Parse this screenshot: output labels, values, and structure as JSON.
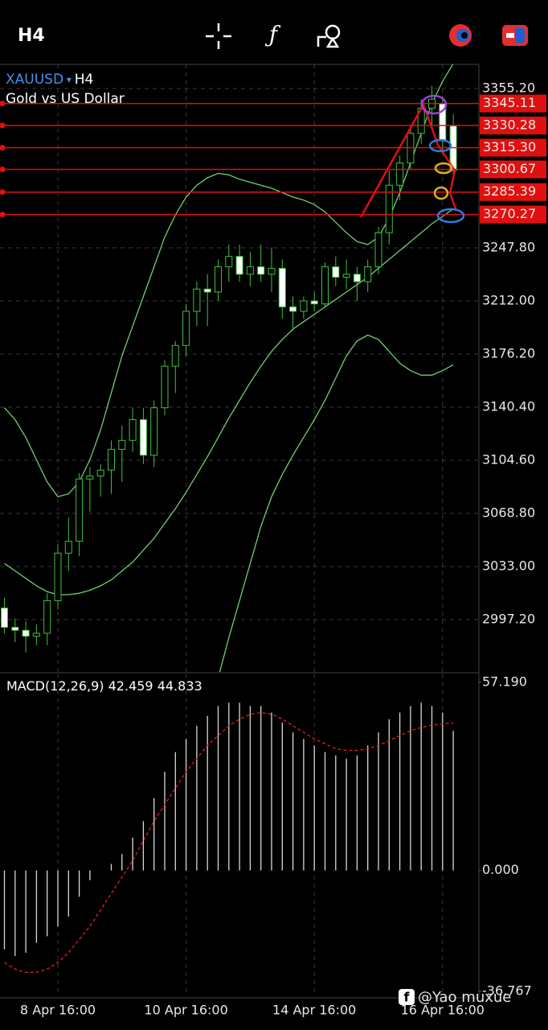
{
  "toolbar": {
    "timeframe": "H4"
  },
  "chart_data": [
    {
      "type": "candlestick",
      "symbol": "XAUUSD",
      "timeframe": "H4",
      "description": "Gold vs US Dollar",
      "categories": [
        null,
        null,
        null,
        null,
        null,
        "8 Apr 16:00",
        null,
        null,
        null,
        null,
        null,
        null,
        null,
        null,
        null,
        null,
        null,
        "10 Apr 16:00",
        null,
        null,
        null,
        null,
        null,
        null,
        null,
        null,
        null,
        null,
        null,
        "14 Apr 16:00",
        null,
        null,
        null,
        null,
        null,
        null,
        null,
        null,
        null,
        null,
        null,
        "16 Apr 16:00",
        null
      ],
      "open": [
        3005,
        2992,
        2990,
        2986,
        2988,
        3010,
        3042,
        3050,
        3092,
        3094,
        3098,
        3112,
        3118,
        3132,
        3108,
        3140,
        3168,
        3182,
        3205,
        3220,
        3218,
        3235,
        3242,
        3230,
        3235,
        3230,
        3234,
        3208,
        3205,
        3212,
        3210,
        3235,
        3228,
        3230,
        3225,
        3235,
        3258,
        3290,
        3305,
        3325,
        3342,
        3345,
        3330
      ],
      "high": [
        3012,
        2998,
        2996,
        2994,
        3015,
        3048,
        3066,
        3096,
        3100,
        3102,
        3118,
        3128,
        3140,
        3140,
        3145,
        3172,
        3185,
        3210,
        3225,
        3230,
        3240,
        3250,
        3250,
        3245,
        3250,
        3248,
        3240,
        3215,
        3215,
        3218,
        3238,
        3242,
        3240,
        3235,
        3240,
        3262,
        3300,
        3310,
        3330,
        3348,
        3357,
        3350,
        3338
      ],
      "low": [
        2988,
        2982,
        2975,
        2980,
        2980,
        3004,
        3030,
        3040,
        3070,
        3080,
        3082,
        3090,
        3110,
        3102,
        3100,
        3135,
        3150,
        3175,
        3195,
        3195,
        3212,
        3225,
        3225,
        3222,
        3225,
        3218,
        3200,
        3192,
        3200,
        3205,
        3208,
        3222,
        3220,
        3212,
        3218,
        3230,
        3250,
        3280,
        3300,
        3318,
        3330,
        3312,
        3296
      ],
      "close": [
        2992,
        2990,
        2986,
        2988,
        3010,
        3042,
        3050,
        3092,
        3094,
        3098,
        3112,
        3118,
        3132,
        3108,
        3140,
        3168,
        3182,
        3205,
        3220,
        3218,
        3235,
        3242,
        3230,
        3235,
        3230,
        3234,
        3208,
        3205,
        3212,
        3210,
        3235,
        3228,
        3230,
        3225,
        3235,
        3258,
        3290,
        3305,
        3325,
        3342,
        3348,
        3320,
        3300
      ],
      "up_color": "#3fbf3f",
      "down_color": "#ffffff",
      "overlays": [
        {
          "color": "#6fcf6f",
          "values": [
            3140,
            3132,
            3120,
            3105,
            3090,
            3080,
            3082,
            3090,
            3105,
            3125,
            3150,
            3175,
            3195,
            3215,
            3235,
            3255,
            3270,
            3282,
            3290,
            3295,
            3298,
            3297,
            3294,
            3292,
            3290,
            3288,
            3285,
            3282,
            3280,
            3277,
            3272,
            3265,
            3258,
            3252,
            3250,
            3255,
            3268,
            3285,
            3305,
            3325,
            3345,
            3360,
            3372
          ]
        },
        {
          "color": "#6fcf6f",
          "values": [
            3035,
            3030,
            3025,
            3020,
            3016,
            3014,
            3014,
            3015,
            3017,
            3020,
            3024,
            3030,
            3036,
            3044,
            3052,
            3062,
            3072,
            3083,
            3095,
            3107,
            3120,
            3133,
            3145,
            3157,
            3168,
            3178,
            3186,
            3193,
            3198,
            3203,
            3208,
            3213,
            3218,
            3223,
            3228,
            3234,
            3240,
            3246,
            3252,
            3258,
            3264,
            3269,
            3274
          ]
        },
        {
          "color": "#6fcf6f",
          "values": [
            null,
            null,
            null,
            null,
            null,
            null,
            null,
            null,
            null,
            null,
            null,
            null,
            null,
            null,
            null,
            null,
            null,
            null,
            null,
            null,
            2958,
            2985,
            3010,
            3035,
            3060,
            3080,
            3095,
            3108,
            3120,
            3132,
            3145,
            3160,
            3175,
            3185,
            3189,
            3186,
            3178,
            3170,
            3165,
            3162,
            3162,
            3165,
            3169
          ]
        }
      ],
      "levels": [
        {
          "value": 3345.11,
          "label": "3345.11"
        },
        {
          "value": 3330.28,
          "label": "3330.28"
        },
        {
          "value": 3315.3,
          "label": "3315.30"
        },
        {
          "value": 3300.67,
          "label": "3300.67"
        },
        {
          "value": 3285.39,
          "label": "3285.39"
        },
        {
          "value": 3270.27,
          "label": "3270.27"
        }
      ],
      "level_color": "#e01010",
      "ylim": [
        2961.94,
        3371.47
      ],
      "yticks": [
        {
          "value": 2997.2,
          "label": "2997.20"
        },
        {
          "value": 3033,
          "label": "3033.00"
        },
        {
          "value": 3068.8,
          "label": "3068.80"
        },
        {
          "value": 3104.6,
          "label": "3104.60"
        },
        {
          "value": 3140.4,
          "label": "3140.40"
        },
        {
          "value": 3176.2,
          "label": "3176.20"
        },
        {
          "value": 3212,
          "label": "3212.00"
        },
        {
          "value": 3247.8,
          "label": "3247.80"
        },
        {
          "value": 3355.2,
          "label": "3355.20"
        }
      ],
      "grid": true
    },
    {
      "type": "macd",
      "label": "MACD(12,26,9)",
      "histogram": {
        "color": "#d8d8d8",
        "values": [
          -24,
          -26,
          -25,
          -22,
          -20,
          -17,
          -14,
          -8,
          -3,
          0,
          2,
          5,
          10,
          15,
          22,
          30,
          36,
          40,
          44,
          47,
          50,
          51,
          51,
          50,
          50,
          48,
          45,
          42,
          40,
          38,
          36,
          35,
          34,
          35,
          38,
          42,
          46,
          48,
          50,
          51,
          50,
          48,
          42.459
        ]
      },
      "signal": {
        "color": "#e02020",
        "values": [
          -28,
          -30,
          -31,
          -31,
          -30,
          -28,
          -25,
          -21,
          -17,
          -12,
          -7,
          -2,
          3,
          9,
          15,
          20,
          25,
          30,
          34,
          38,
          41,
          44,
          46,
          47.5,
          48,
          47.5,
          46,
          44,
          42,
          40,
          38.5,
          37,
          36.5,
          36.5,
          37,
          38,
          39.5,
          41,
          42.5,
          43.5,
          44.2,
          44.6,
          44.833
        ]
      },
      "ylim": [
        -36.767,
        57.19
      ],
      "yticks": [
        {
          "value": -36.767,
          "label": "-36.767"
        },
        {
          "value": 0,
          "label": "0.000"
        },
        {
          "value": 57.19,
          "label": "57.190"
        }
      ]
    }
  ],
  "watermark": "@Yao muxue"
}
